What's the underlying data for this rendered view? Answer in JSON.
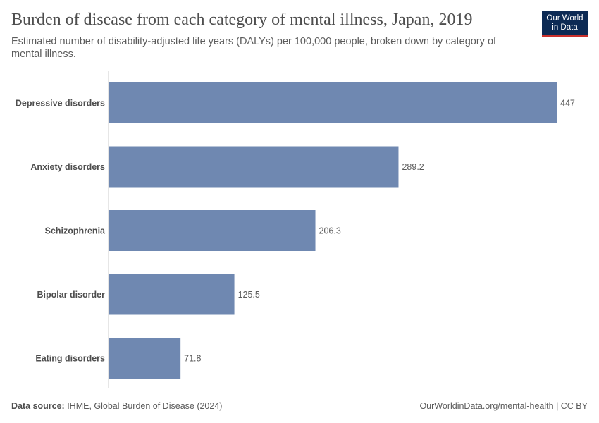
{
  "header": {
    "title": "Burden of disease from each category of mental illness, Japan, 2019",
    "subtitle": "Estimated number of disability-adjusted life years (DALYs) per 100,000 people, broken down by category of mental illness.",
    "logo_line1": "Our World",
    "logo_line2": "in Data"
  },
  "footer": {
    "source_label": "Data source:",
    "source_text": " IHME, Global Burden of Disease (2024)",
    "credit": "OurWorldinData.org/mental-health | CC BY"
  },
  "colors": {
    "bar": "#6f88b1",
    "axis": "#cccccc"
  },
  "chart_data": {
    "type": "bar",
    "orientation": "horizontal",
    "categories": [
      "Depressive disorders",
      "Anxiety disorders",
      "Schizophrenia",
      "Bipolar disorder",
      "Eating disorders"
    ],
    "values": [
      447,
      289.2,
      206.3,
      125.5,
      71.8
    ],
    "value_labels": [
      "447",
      "289.2",
      "206.3",
      "125.5",
      "71.8"
    ],
    "xlim": [
      0,
      447
    ]
  }
}
